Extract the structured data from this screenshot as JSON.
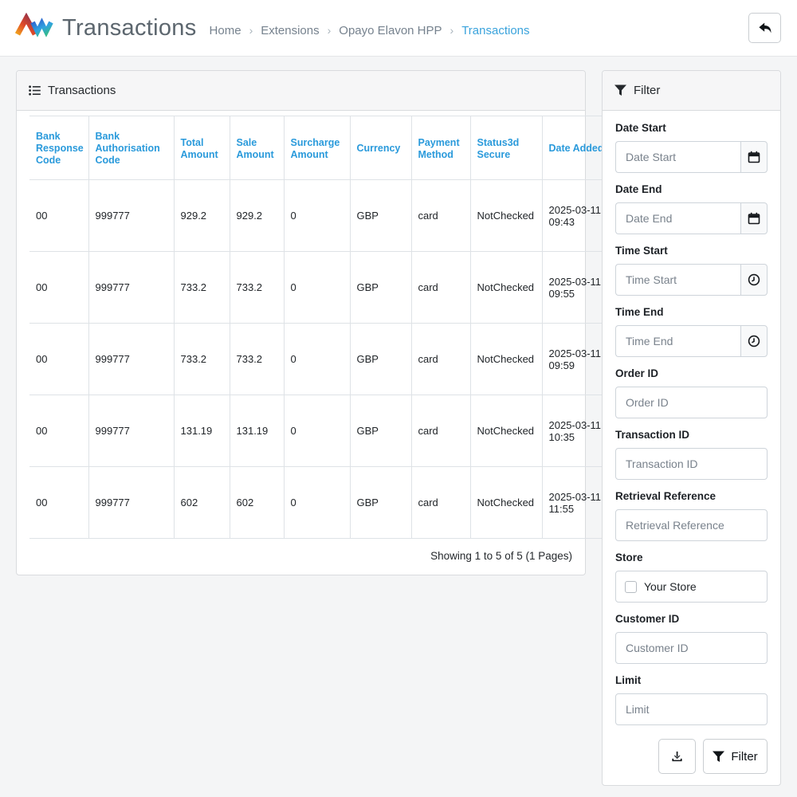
{
  "header": {
    "title": "Transactions",
    "breadcrumb": [
      {
        "label": "Home",
        "active": false
      },
      {
        "label": "Extensions",
        "active": false
      },
      {
        "label": "Opayo Elavon HPP",
        "active": false
      },
      {
        "label": "Transactions",
        "active": true
      }
    ],
    "back_button": "back-arrow-icon"
  },
  "panel": {
    "title": "Transactions",
    "icon": "list-icon",
    "table": {
      "columns": [
        "Bank Response Code",
        "Bank Authorisation Code",
        "Total Amount",
        "Sale Amount",
        "Surcharge Amount",
        "Currency",
        "Payment Method",
        "Status3d Secure",
        "Date Added"
      ],
      "rows": [
        [
          "00",
          "999777",
          "929.2",
          "929.2",
          "0",
          "GBP",
          "card",
          "NotChecked",
          "2025-03-11 09:43"
        ],
        [
          "00",
          "999777",
          "733.2",
          "733.2",
          "0",
          "GBP",
          "card",
          "NotChecked",
          "2025-03-11 09:55"
        ],
        [
          "00",
          "999777",
          "733.2",
          "733.2",
          "0",
          "GBP",
          "card",
          "NotChecked",
          "2025-03-11 09:59"
        ],
        [
          "00",
          "999777",
          "131.19",
          "131.19",
          "0",
          "GBP",
          "card",
          "NotChecked",
          "2025-03-11 10:35"
        ],
        [
          "00",
          "999777",
          "602",
          "602",
          "0",
          "GBP",
          "card",
          "NotChecked",
          "2025-03-11 11:55"
        ]
      ]
    },
    "pagination": "Showing 1 to 5 of 5 (1 Pages)"
  },
  "filter": {
    "title": "Filter",
    "icon": "funnel-icon",
    "fields": [
      {
        "label": "Date Start",
        "placeholder": "Date Start",
        "addon": "calendar",
        "type": "text"
      },
      {
        "label": "Date End",
        "placeholder": "Date End",
        "addon": "calendar",
        "type": "text"
      },
      {
        "label": "Time Start",
        "placeholder": "Time Start",
        "addon": "clock",
        "type": "text"
      },
      {
        "label": "Time End",
        "placeholder": "Time End",
        "addon": "clock",
        "type": "text"
      },
      {
        "label": "Order ID",
        "placeholder": "Order ID",
        "addon": null,
        "type": "text"
      },
      {
        "label": "Transaction ID",
        "placeholder": "Transaction ID",
        "addon": null,
        "type": "text"
      },
      {
        "label": "Retrieval Reference",
        "placeholder": "Retrieval Reference",
        "addon": null,
        "type": "text"
      },
      {
        "label": "Store",
        "text": "Your Store",
        "checked": false,
        "type": "checkbox"
      },
      {
        "label": "Customer ID",
        "placeholder": "Customer ID",
        "addon": null,
        "type": "text"
      },
      {
        "label": "Limit",
        "placeholder": "Limit",
        "addon": null,
        "type": "text"
      }
    ],
    "buttons": {
      "download": "download-icon",
      "filter_label": "Filter"
    }
  },
  "colors": {
    "table_header_link": "#2a9adb",
    "breadcrumb_active": "#3aa3dc",
    "breadcrumb_inactive": "#76828e",
    "page_background": "#f4f5f6",
    "card_header_background": "#f6f6f7",
    "border": "#dee2e6"
  }
}
